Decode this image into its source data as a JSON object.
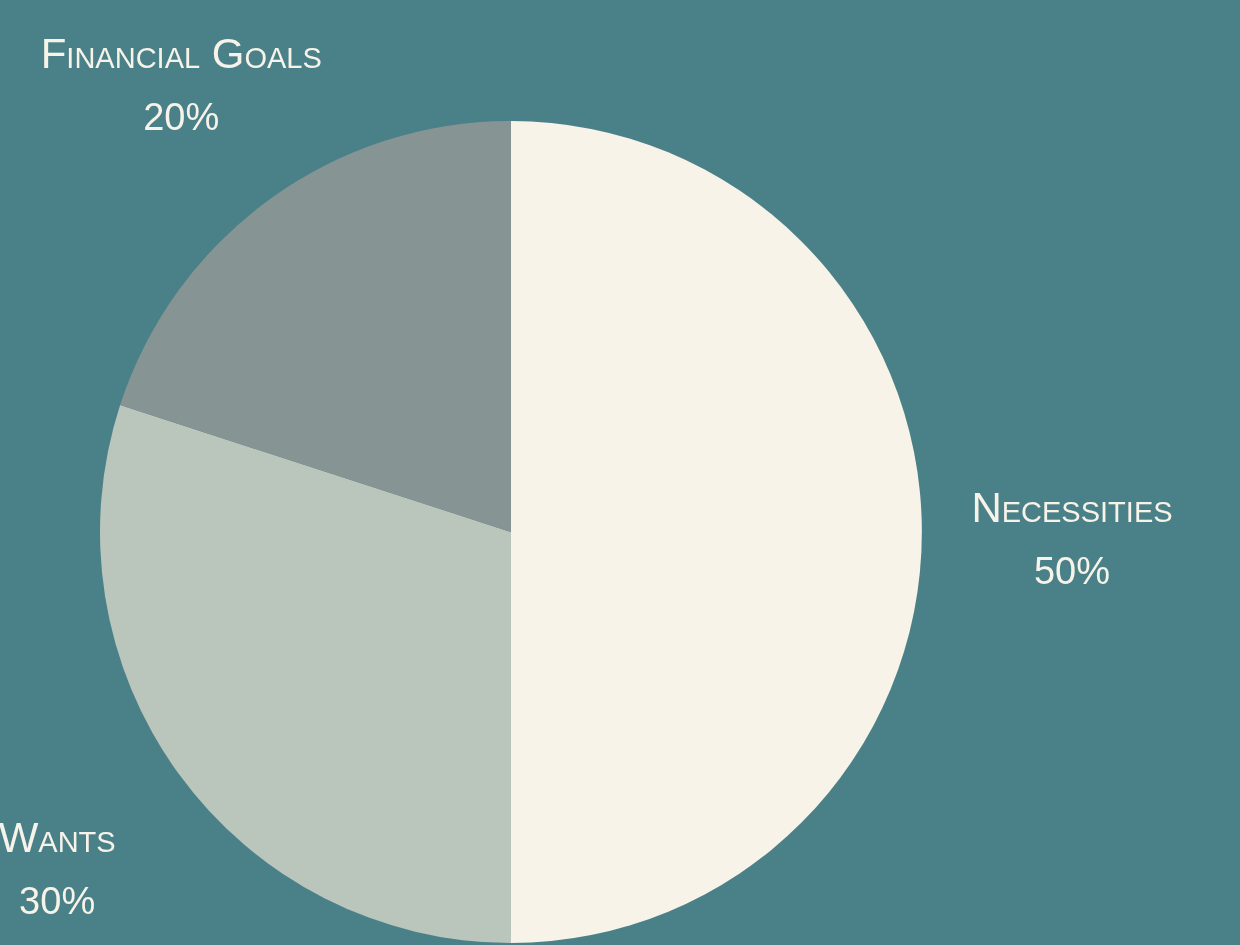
{
  "chart_data": {
    "type": "pie",
    "categories": [
      "Necessities",
      "Wants",
      "Financial Goals"
    ],
    "values": [
      50,
      30,
      20
    ],
    "colors": [
      "#f7f3e8",
      "#bac5bc",
      "#869593"
    ],
    "value_labels": [
      "50%",
      "30%",
      "20%"
    ],
    "legend": false
  }
}
